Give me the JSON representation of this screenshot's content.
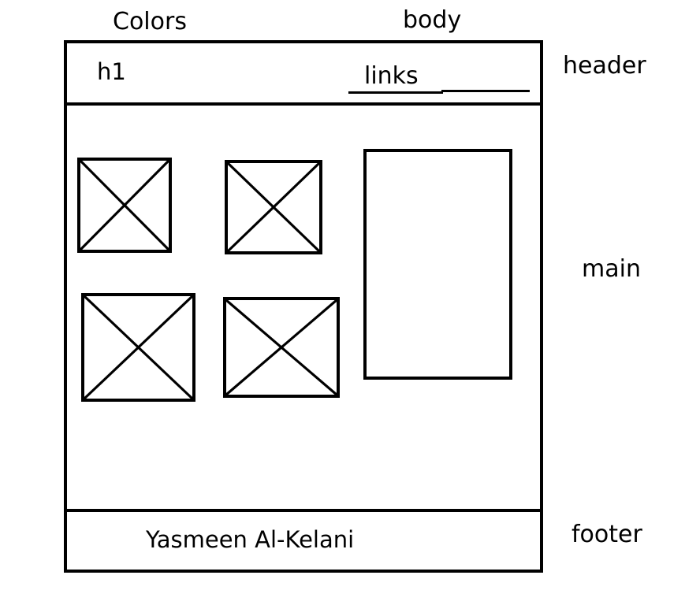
{
  "annotations": {
    "colors": "Colors",
    "body": "body",
    "header": "header",
    "main": "main",
    "footer": "footer"
  },
  "header": {
    "title": "h1",
    "links": "links"
  },
  "footer": {
    "author": "Yasmeen Al-Kelani"
  },
  "main": {
    "image_placeholders": 4
  }
}
